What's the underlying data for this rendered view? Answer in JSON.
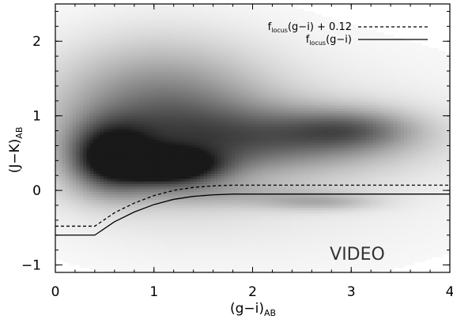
{
  "chart_data": {
    "type": "scatter",
    "xlabel": {
      "main": "(g−i)",
      "sub": "AB"
    },
    "ylabel": {
      "main": "(J−K)",
      "sub": "AB"
    },
    "xlim": [
      0,
      4
    ],
    "ylim": [
      -1.1,
      2.5
    ],
    "xticks": [
      0,
      1,
      2,
      3,
      4
    ],
    "yticks": [
      -1,
      0,
      1,
      2
    ],
    "grid": false,
    "legend_position": "top-right",
    "annotation": "VIDEO",
    "density_colormap": "grayscale",
    "density_clusters": [
      {
        "x": 0.55,
        "y": 0.45,
        "sx": 0.28,
        "sy": 0.3,
        "peak": 0.8
      },
      {
        "x": 1.15,
        "y": 0.32,
        "sx": 0.35,
        "sy": 0.16,
        "peak": 0.98
      },
      {
        "x": 1.05,
        "y": 1.0,
        "sx": 0.75,
        "sy": 0.65,
        "peak": 0.55
      },
      {
        "x": 2.3,
        "y": 0.7,
        "sx": 0.9,
        "sy": 0.3,
        "peak": 0.45
      },
      {
        "x": 3.0,
        "y": 0.82,
        "sx": 0.45,
        "sy": 0.18,
        "peak": 0.35
      },
      {
        "x": 2.7,
        "y": -0.15,
        "sx": 0.4,
        "sy": 0.08,
        "peak": 0.22
      },
      {
        "x": 1.7,
        "y": -0.05,
        "sx": 0.8,
        "sy": 0.12,
        "peak": 0.15
      },
      {
        "x": 2.0,
        "y": 0.5,
        "sx": 1.6,
        "sy": 0.9,
        "peak": 0.13
      }
    ],
    "series": [
      {
        "name": "f_locus(g−i) + 0.12",
        "label_parts": {
          "f": "f",
          "sub": "locus",
          "rest": "(g−i) + 0.12"
        },
        "style": "dashed",
        "x": [
          0,
          0.4,
          0.6,
          0.8,
          1.0,
          1.2,
          1.4,
          1.6,
          1.8,
          2.0,
          3.0,
          4.0
        ],
        "y": [
          -0.48,
          -0.48,
          -0.3,
          -0.17,
          -0.07,
          0.0,
          0.04,
          0.06,
          0.07,
          0.07,
          0.07,
          0.07
        ]
      },
      {
        "name": "f_locus(g−i)",
        "label_parts": {
          "f": "f",
          "sub": "locus",
          "rest": "(g−i)"
        },
        "style": "solid",
        "x": [
          0,
          0.4,
          0.6,
          0.8,
          1.0,
          1.2,
          1.4,
          1.6,
          1.8,
          2.0,
          3.0,
          4.0
        ],
        "y": [
          -0.6,
          -0.6,
          -0.42,
          -0.29,
          -0.19,
          -0.12,
          -0.08,
          -0.06,
          -0.05,
          -0.05,
          -0.05,
          -0.05
        ]
      }
    ]
  }
}
